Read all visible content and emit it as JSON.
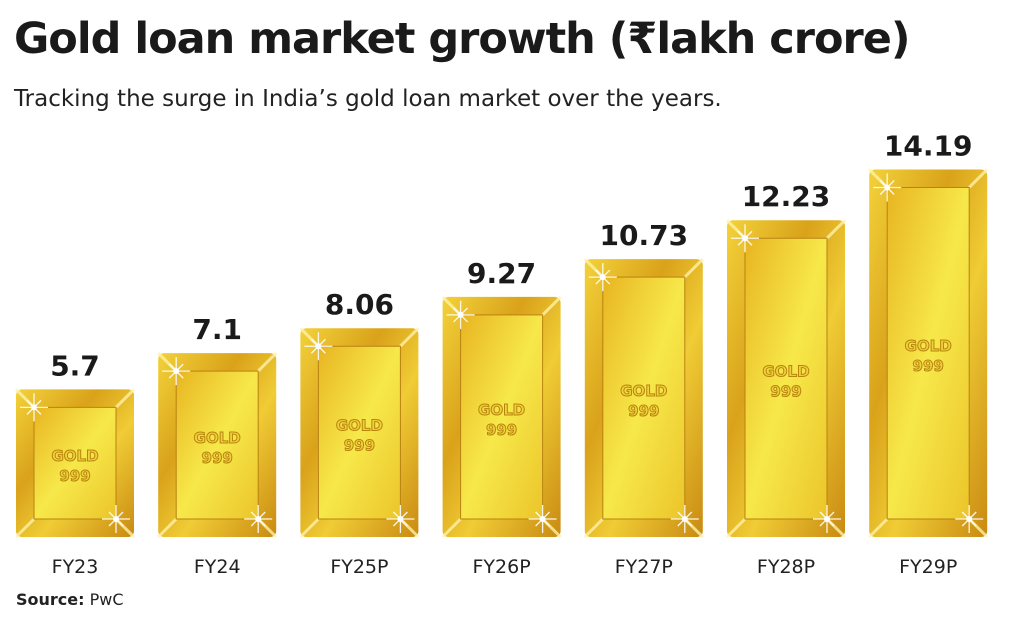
{
  "chart_data": {
    "type": "bar",
    "title": "Gold loan market growth (₹lakh crore)",
    "subtitle": "Tracking the surge in India’s gold loan market over the years.",
    "categories": [
      "FY23",
      "FY24",
      "FY25P",
      "FY26P",
      "FY27P",
      "FY28P",
      "FY29P"
    ],
    "values": [
      5.7,
      7.1,
      8.06,
      9.27,
      10.73,
      12.23,
      14.19
    ],
    "value_labels": [
      "5.7",
      "7.1",
      "8.06",
      "9.27",
      "10.73",
      "12.23",
      "14.19"
    ],
    "bar_stamp": [
      "GOLD",
      "999"
    ],
    "xlabel": "",
    "ylabel": "",
    "grid": false,
    "colors": {
      "gold_light": "#f7e84a",
      "gold_mid": "#e6b91e",
      "gold_dark": "#c98a12",
      "stamp": "#b8860b"
    }
  },
  "source": {
    "label": "Source:",
    "value": "PwC"
  }
}
